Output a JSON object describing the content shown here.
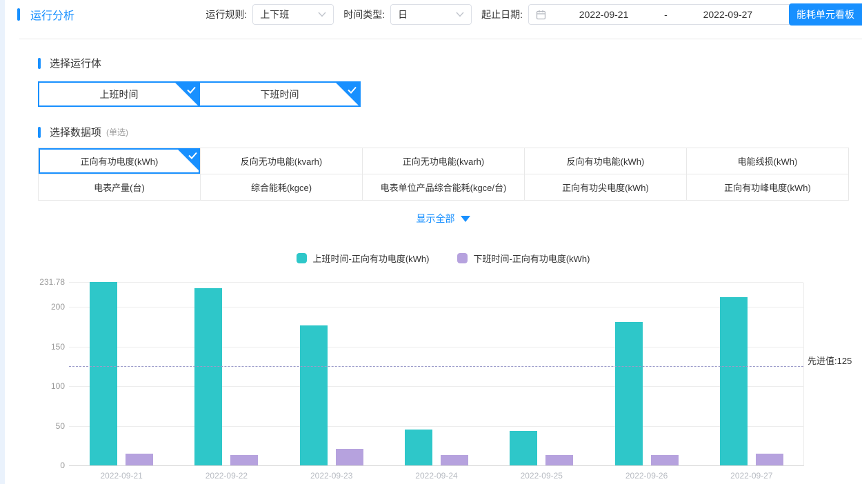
{
  "colors": {
    "accent": "#1890ff",
    "series_work": "#2ec7c9",
    "series_off": "#b6a2de",
    "reference_line": "#9b9bc9"
  },
  "icons": {
    "rule_select": "chevron-down-icon",
    "time_type_select": "chevron-down-icon",
    "date_range": "calendar-icon",
    "selected_mark": "check-icon",
    "show_all": "triangle-down-icon"
  },
  "header": {
    "title": "运行分析",
    "rule_label": "运行规则:",
    "rule_value": "上下班",
    "time_type_label": "时间类型:",
    "time_type_value": "日",
    "date_label": "起止日期:",
    "date_start": "2022-09-21",
    "date_separator": "-",
    "date_end": "2022-09-27",
    "board_button": "能耗单元看板"
  },
  "run_body_section": {
    "title": "选择运行体",
    "tabs": [
      {
        "label": "上班时间",
        "selected": true
      },
      {
        "label": "下班时间",
        "selected": true
      }
    ]
  },
  "data_item_section": {
    "title": "选择数据项",
    "subtitle": "(单选)",
    "items": [
      {
        "label": "正向有功电度(kWh)",
        "selected": true
      },
      {
        "label": "反向无功电能(kvarh)",
        "selected": false
      },
      {
        "label": "正向无功电能(kvarh)",
        "selected": false
      },
      {
        "label": "反向有功电能(kWh)",
        "selected": false
      },
      {
        "label": "电能线损(kWh)",
        "selected": false
      },
      {
        "label": "电表产量(台)",
        "selected": false
      },
      {
        "label": "综合能耗(kgce)",
        "selected": false
      },
      {
        "label": "电表单位产品综合能耗(kgce/台)",
        "selected": false
      },
      {
        "label": "正向有功尖电度(kWh)",
        "selected": false
      },
      {
        "label": "正向有功峰电度(kWh)",
        "selected": false
      }
    ]
  },
  "show_all": {
    "label": "显示全部"
  },
  "chart_data": {
    "type": "bar",
    "categories": [
      "2022-09-21",
      "2022-09-22",
      "2022-09-23",
      "2022-09-24",
      "2022-09-25",
      "2022-09-26",
      "2022-09-27"
    ],
    "series": [
      {
        "name": "上班时间-正向有功电度(kWh)",
        "color": "#2ec7c9",
        "values": [
          231.78,
          224,
          177,
          45,
          44,
          181,
          213
        ]
      },
      {
        "name": "下班时间-正向有功电度(kWh)",
        "color": "#b6a2de",
        "values": [
          15,
          13,
          21,
          13,
          13,
          13,
          15
        ]
      }
    ],
    "title": "",
    "xlabel": "",
    "ylabel": "",
    "ylim": [
      0,
      231.78
    ],
    "y_ticks": [
      0,
      50,
      100,
      150,
      200,
      231.78
    ],
    "grid": true,
    "legend_position": "top",
    "reference_line": {
      "value": 125,
      "label": "先进值:125"
    }
  }
}
